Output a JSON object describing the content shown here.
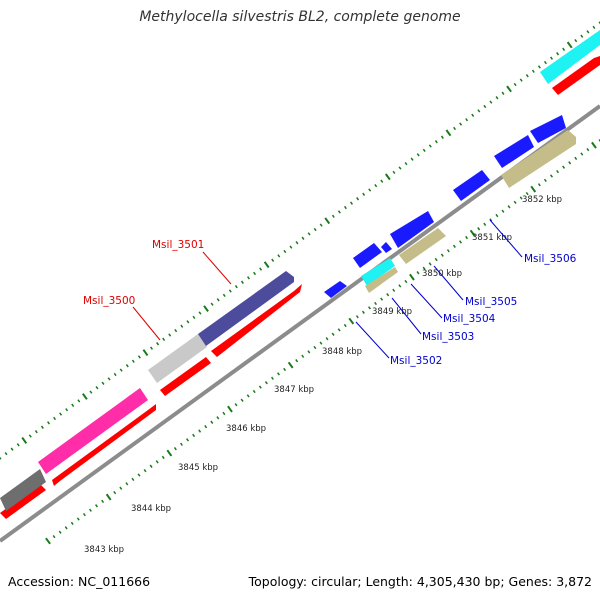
{
  "title": "Methylocella silvestris BL2, complete genome",
  "footer": {
    "accession": "Accession: NC_011666",
    "summary": "Topology: circular; Length: 4,305,430 bp; Genes: 3,872"
  },
  "colors": {
    "backbone": "#8c8c8c",
    "cds": "#ff0000",
    "cds_dark": "#2a2aff",
    "navy": "#4b4a9a",
    "magenta": "#ff33aa",
    "gray": "#c8c8c8",
    "dark_gray": "#777777",
    "cyan": "#1ef2f2",
    "khaki": "#c4bd8a",
    "tick": "#1a7a1a",
    "label_red": "#dd0000",
    "label_blue": "#0000cc"
  },
  "kbp_labels": [
    {
      "text": "3843 kbp"
    },
    {
      "text": "3844 kbp"
    },
    {
      "text": "3845 kbp"
    },
    {
      "text": "3846 kbp"
    },
    {
      "text": "3847 kbp"
    },
    {
      "text": "3848 kbp"
    },
    {
      "text": "3849 kbp"
    },
    {
      "text": "3850 kbp"
    },
    {
      "text": "3851 kbp"
    },
    {
      "text": "3852 kbp"
    }
  ],
  "gene_labels": {
    "red": [
      "Msil_3500",
      "Msil_3501"
    ],
    "blue": [
      "Msil_3502",
      "Msil_3503",
      "Msil_3504",
      "Msil_3505",
      "Msil_3506"
    ]
  }
}
